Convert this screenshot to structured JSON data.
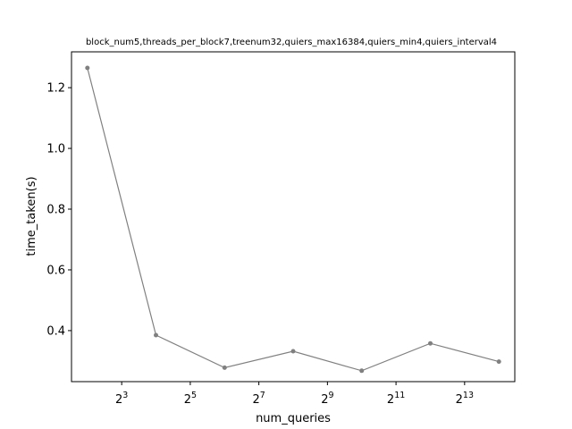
{
  "chart_data": {
    "type": "line",
    "title": "block_num5,threads_per_block7,treenum32,quiers_max16384,quiers_min4,quiers_interval4",
    "xlabel": "num_queries",
    "ylabel": "time_taken(s)",
    "x_scale": "log2",
    "x": [
      4,
      16,
      64,
      256,
      1024,
      4096,
      16384
    ],
    "xlim": [
      2.9,
      22600
    ],
    "ylim": [
      0.232,
      1.318
    ],
    "x_ticks": [
      {
        "value": 8,
        "base": "2",
        "exp": "3"
      },
      {
        "value": 32,
        "base": "2",
        "exp": "5"
      },
      {
        "value": 128,
        "base": "2",
        "exp": "7"
      },
      {
        "value": 512,
        "base": "2",
        "exp": "9"
      },
      {
        "value": 2048,
        "base": "2",
        "exp": "11"
      },
      {
        "value": 8192,
        "base": "2",
        "exp": "13"
      }
    ],
    "y_ticks": [
      {
        "value": 0.4,
        "label": "0.4"
      },
      {
        "value": 0.6,
        "label": "0.6"
      },
      {
        "value": 0.8,
        "label": "0.8"
      },
      {
        "value": 1.0,
        "label": "1.0"
      },
      {
        "value": 1.2,
        "label": "1.2"
      }
    ],
    "series": [
      {
        "color": "#808080",
        "values": [
          1.265,
          0.385,
          0.278,
          0.332,
          0.268,
          0.358,
          0.298
        ]
      }
    ],
    "grid": false,
    "legend": "none"
  }
}
